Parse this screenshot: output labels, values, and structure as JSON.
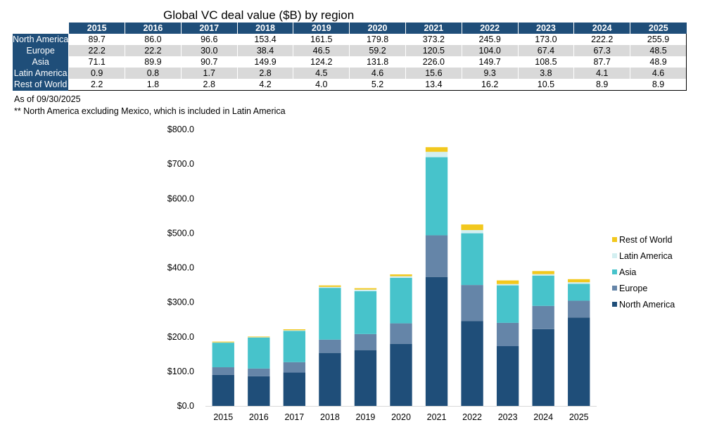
{
  "title": "Global VC deal value ($B) by region",
  "table": {
    "years": [
      "2015",
      "2016",
      "2017",
      "2018",
      "2019",
      "2020",
      "2021",
      "2022",
      "2023",
      "2024",
      "2025"
    ],
    "rows": [
      {
        "label": "North America",
        "values": [
          "89.7",
          "86.0",
          "96.6",
          "153.4",
          "161.5",
          "179.8",
          "373.2",
          "245.9",
          "173.0",
          "222.2",
          "255.9"
        ]
      },
      {
        "label": "Europe",
        "values": [
          "22.2",
          "22.2",
          "30.0",
          "38.4",
          "46.5",
          "59.2",
          "120.5",
          "104.0",
          "67.4",
          "67.3",
          "48.5"
        ]
      },
      {
        "label": "Asia",
        "values": [
          "71.1",
          "89.9",
          "90.7",
          "149.9",
          "124.2",
          "131.8",
          "226.0",
          "149.7",
          "108.5",
          "87.7",
          "48.9"
        ]
      },
      {
        "label": "Latin America",
        "values": [
          "0.9",
          "0.8",
          "1.7",
          "2.8",
          "4.5",
          "4.6",
          "15.6",
          "9.3",
          "3.8",
          "4.1",
          "4.6"
        ]
      },
      {
        "label": "Rest of World",
        "values": [
          "2.2",
          "1.8",
          "2.8",
          "4.2",
          "4.0",
          "5.2",
          "13.4",
          "16.2",
          "10.5",
          "8.9",
          "8.9"
        ]
      }
    ]
  },
  "notes": {
    "as_of": "As of 09/30/2025",
    "footnote": "** North America excluding Mexico, which is included in Latin America"
  },
  "chart_data": {
    "type": "bar",
    "stacked": true,
    "categories": [
      "2015",
      "2016",
      "2017",
      "2018",
      "2019",
      "2020",
      "2021",
      "2022",
      "2023",
      "2024",
      "2025"
    ],
    "series": [
      {
        "name": "North America",
        "color": "#1f4e79",
        "values": [
          89.7,
          86.0,
          96.6,
          153.4,
          161.5,
          179.8,
          373.2,
          245.9,
          173.0,
          222.2,
          255.9
        ]
      },
      {
        "name": "Europe",
        "color": "#6585a8",
        "values": [
          22.2,
          22.2,
          30.0,
          38.4,
          46.5,
          59.2,
          120.5,
          104.0,
          67.4,
          67.3,
          48.5
        ]
      },
      {
        "name": "Asia",
        "color": "#47c3cb",
        "values": [
          71.1,
          89.9,
          90.7,
          149.9,
          124.2,
          131.8,
          226.0,
          149.7,
          108.5,
          87.7,
          48.9
        ]
      },
      {
        "name": "Latin America",
        "color": "#d3eff1",
        "values": [
          0.9,
          0.8,
          1.7,
          2.8,
          4.5,
          4.6,
          15.6,
          9.3,
          3.8,
          4.1,
          4.6
        ]
      },
      {
        "name": "Rest of World",
        "color": "#f2c81e",
        "values": [
          2.2,
          1.8,
          2.8,
          4.2,
          4.0,
          5.2,
          13.4,
          16.2,
          10.5,
          8.9,
          8.9
        ]
      }
    ],
    "ylim": [
      0,
      800
    ],
    "yticks": [
      0,
      100,
      200,
      300,
      400,
      500,
      600,
      700,
      800
    ],
    "ytick_labels": [
      "$0.0",
      "$100.0",
      "$200.0",
      "$300.0",
      "$400.0",
      "$500.0",
      "$600.0",
      "$700.0",
      "$800.0"
    ],
    "legend_placement": "right",
    "legend_order": [
      "Rest of World",
      "Latin America",
      "Asia",
      "Europe",
      "North America"
    ],
    "grid": false,
    "title": "",
    "xlabel": "",
    "ylabel": ""
  }
}
